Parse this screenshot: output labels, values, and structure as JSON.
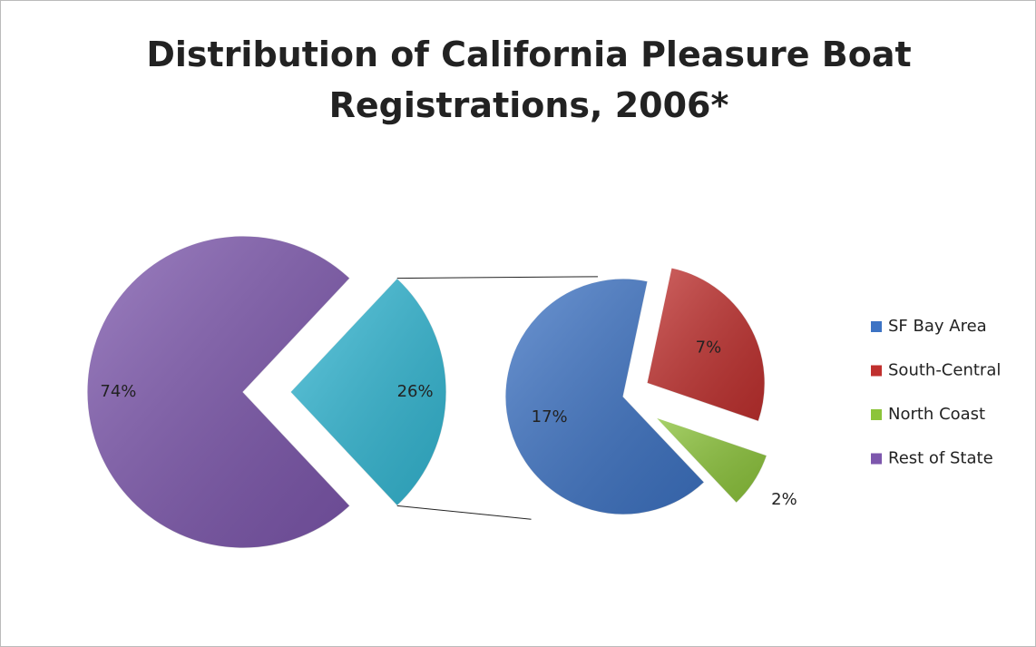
{
  "chart_data": {
    "type": "pie_of_pie",
    "title": "Distribution of California Pleasure Boat Registrations, 2006*",
    "categories": [
      "SF Bay Area",
      "South-Central",
      "North Coast",
      "Rest of State"
    ],
    "values": [
      17,
      7,
      2,
      74
    ],
    "value_labels": [
      "17%",
      "7%",
      "2%",
      "74%"
    ],
    "colors": [
      "#3d73c4",
      "#c0302e",
      "#8cc43a",
      "#7d57ad"
    ],
    "group_value": 26,
    "group_value_label": "26%",
    "group_color": "#33b8d4",
    "legend": "right"
  }
}
